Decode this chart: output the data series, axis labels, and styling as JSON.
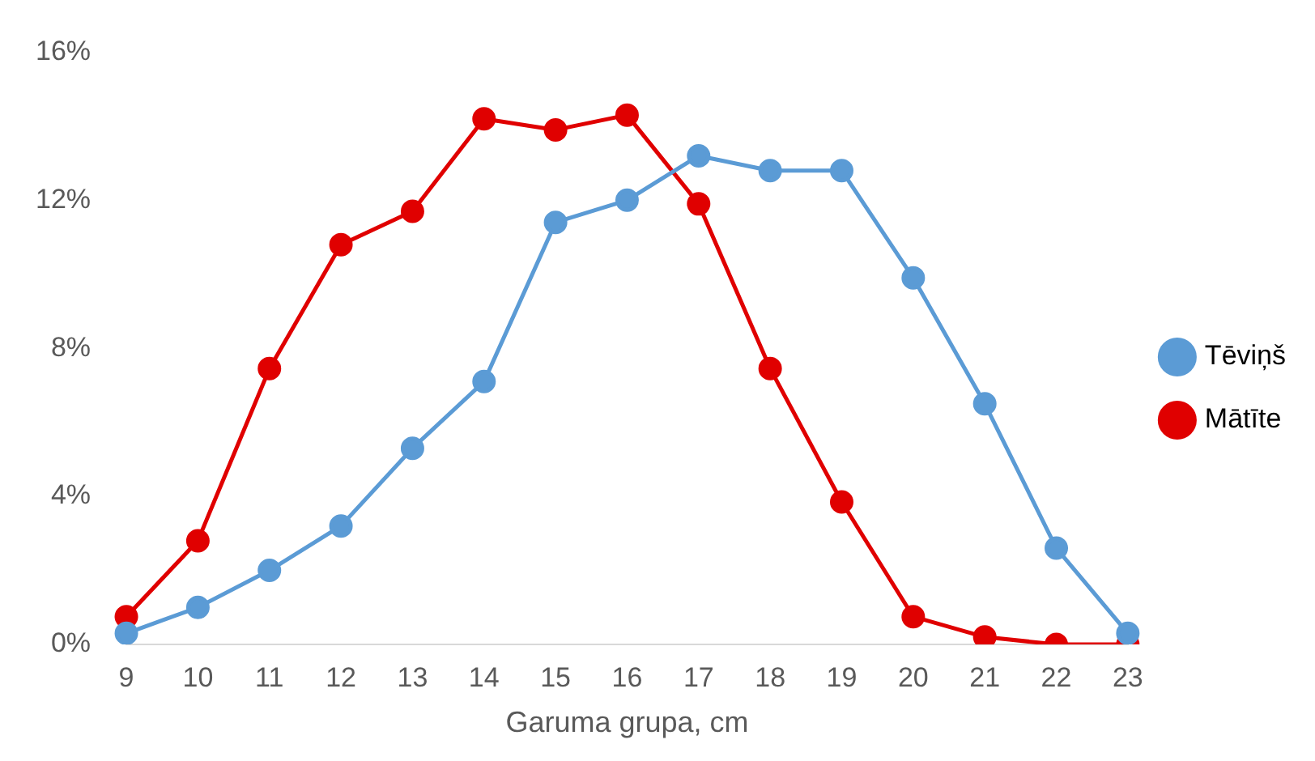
{
  "chart_data": {
    "type": "line",
    "xlabel": "Garuma grupa, cm",
    "categories": [
      "9",
      "10",
      "11",
      "12",
      "13",
      "14",
      "15",
      "16",
      "17",
      "18",
      "19",
      "20",
      "21",
      "22",
      "23"
    ],
    "series": [
      {
        "name": "Tēviņš",
        "color": "#5b9bd5",
        "values": [
          0.3,
          1.0,
          2.0,
          3.2,
          5.3,
          7.1,
          11.4,
          12.0,
          13.2,
          12.8,
          12.8,
          9.9,
          6.5,
          2.6,
          0.3
        ]
      },
      {
        "name": "Mātīte",
        "color": "#e00000",
        "values": [
          0.75,
          2.8,
          7.45,
          10.8,
          11.7,
          14.2,
          13.9,
          14.3,
          11.9,
          7.45,
          3.85,
          0.75,
          0.2,
          0,
          0
        ]
      }
    ],
    "ylim": [
      0,
      16
    ],
    "yticks": [
      {
        "value": 0,
        "label": "0%"
      },
      {
        "value": 4,
        "label": "4%"
      },
      {
        "value": 8,
        "label": "8%"
      },
      {
        "value": 12,
        "label": "12%"
      },
      {
        "value": 16,
        "label": "16%"
      }
    ],
    "grid": false,
    "legend": "right",
    "marker": "circle",
    "line_style": "solid"
  }
}
